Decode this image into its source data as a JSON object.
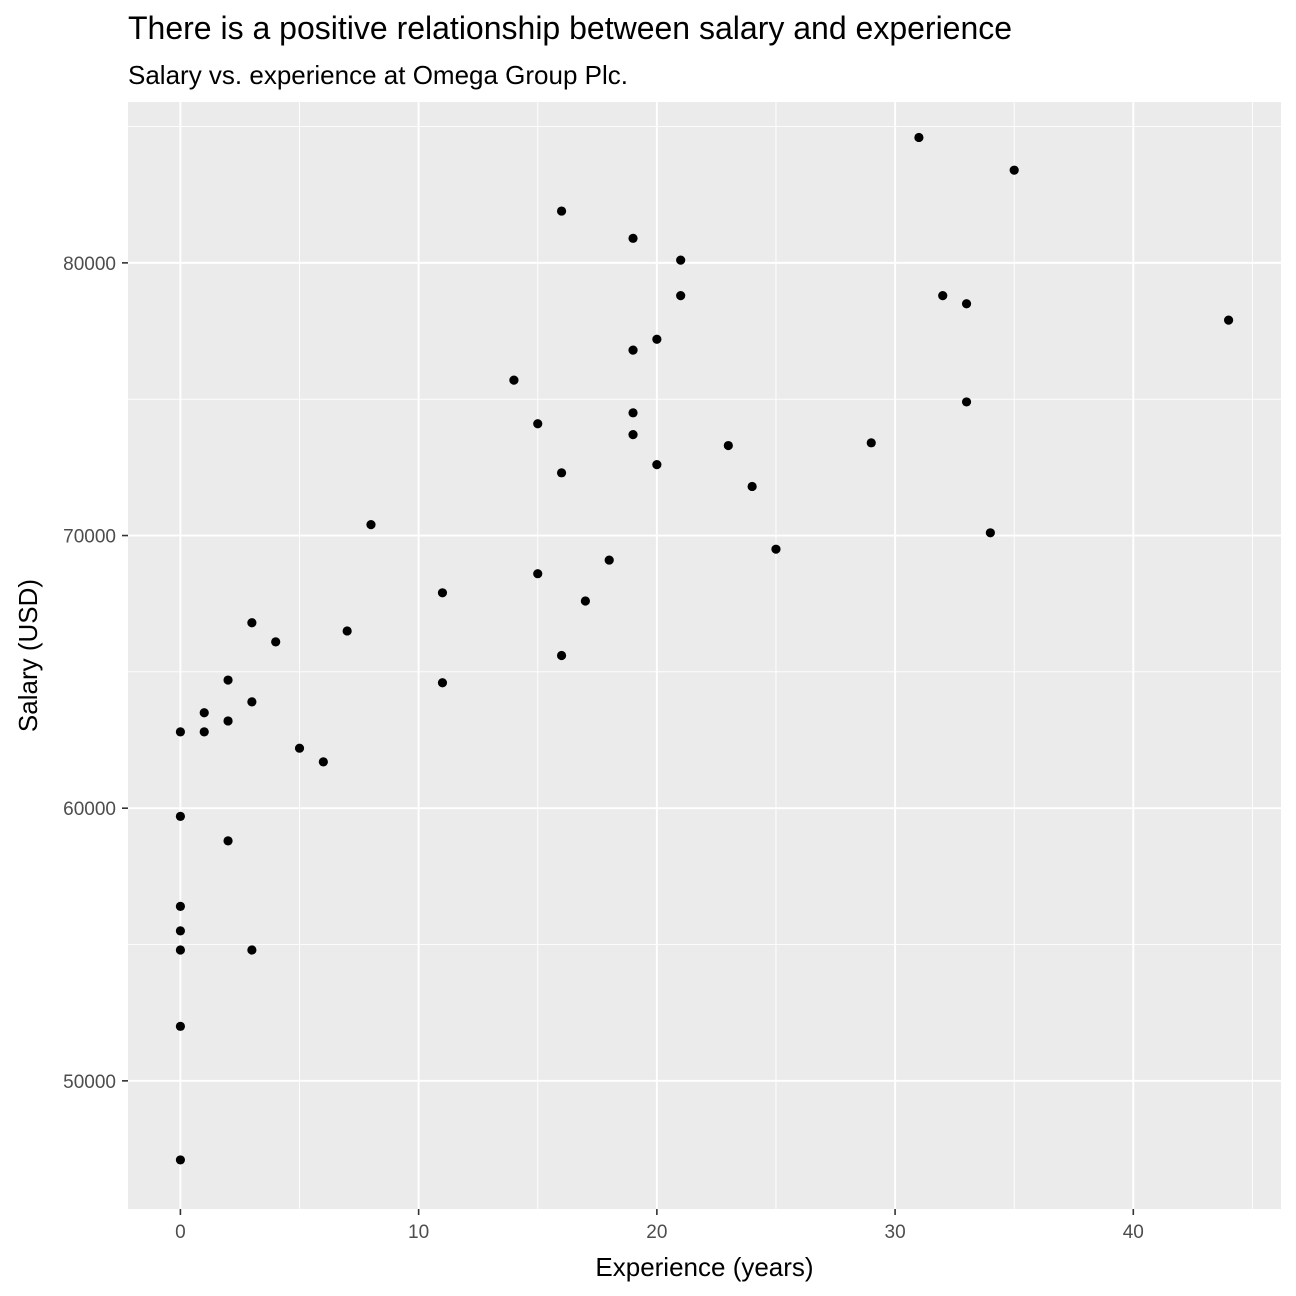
{
  "chart_data": {
    "type": "scatter",
    "title": "There is a positive relationship between salary and experience",
    "subtitle": "Salary vs. experience at Omega Group Plc.",
    "xlabel": "Experience (years)",
    "ylabel": "Salary (USD)",
    "xlim": [
      -2.2,
      46.2
    ],
    "ylim": [
      45300,
      85900
    ],
    "x_ticks": [
      0,
      10,
      20,
      30,
      40
    ],
    "y_ticks": [
      50000,
      60000,
      70000,
      80000
    ],
    "x_tick_labels": [
      "0",
      "10",
      "20",
      "30",
      "40"
    ],
    "y_tick_labels": [
      "50000",
      "60000",
      "70000",
      "80000"
    ],
    "grid": true,
    "panel_background": "#ebebeb",
    "grid_color": "#ffffff",
    "point_color": "#000000",
    "points": [
      {
        "x": 0,
        "y": 47100
      },
      {
        "x": 0,
        "y": 52000
      },
      {
        "x": 0,
        "y": 54800
      },
      {
        "x": 0,
        "y": 55500
      },
      {
        "x": 0,
        "y": 56400
      },
      {
        "x": 0,
        "y": 59700
      },
      {
        "x": 0,
        "y": 62800
      },
      {
        "x": 1,
        "y": 62800
      },
      {
        "x": 1,
        "y": 63500
      },
      {
        "x": 2,
        "y": 58800
      },
      {
        "x": 2,
        "y": 63200
      },
      {
        "x": 2,
        "y": 64700
      },
      {
        "x": 3,
        "y": 54800
      },
      {
        "x": 3,
        "y": 63900
      },
      {
        "x": 3,
        "y": 66800
      },
      {
        "x": 4,
        "y": 66100
      },
      {
        "x": 5,
        "y": 62200
      },
      {
        "x": 6,
        "y": 61700
      },
      {
        "x": 7,
        "y": 66500
      },
      {
        "x": 8,
        "y": 70400
      },
      {
        "x": 11,
        "y": 64600
      },
      {
        "x": 11,
        "y": 67900
      },
      {
        "x": 14,
        "y": 75700
      },
      {
        "x": 15,
        "y": 68600
      },
      {
        "x": 15,
        "y": 74100
      },
      {
        "x": 16,
        "y": 65600
      },
      {
        "x": 16,
        "y": 72300
      },
      {
        "x": 16,
        "y": 81900
      },
      {
        "x": 17,
        "y": 67600
      },
      {
        "x": 18,
        "y": 69100
      },
      {
        "x": 19,
        "y": 73700
      },
      {
        "x": 19,
        "y": 74500
      },
      {
        "x": 19,
        "y": 76800
      },
      {
        "x": 19,
        "y": 80900
      },
      {
        "x": 20,
        "y": 72600
      },
      {
        "x": 20,
        "y": 77200
      },
      {
        "x": 21,
        "y": 78800
      },
      {
        "x": 21,
        "y": 80100
      },
      {
        "x": 23,
        "y": 73300
      },
      {
        "x": 24,
        "y": 71800
      },
      {
        "x": 25,
        "y": 69500
      },
      {
        "x": 29,
        "y": 73400
      },
      {
        "x": 31,
        "y": 84600
      },
      {
        "x": 32,
        "y": 78800
      },
      {
        "x": 33,
        "y": 74900
      },
      {
        "x": 33,
        "y": 78500
      },
      {
        "x": 34,
        "y": 70100
      },
      {
        "x": 35,
        "y": 83400
      },
      {
        "x": 44,
        "y": 77900
      }
    ]
  }
}
